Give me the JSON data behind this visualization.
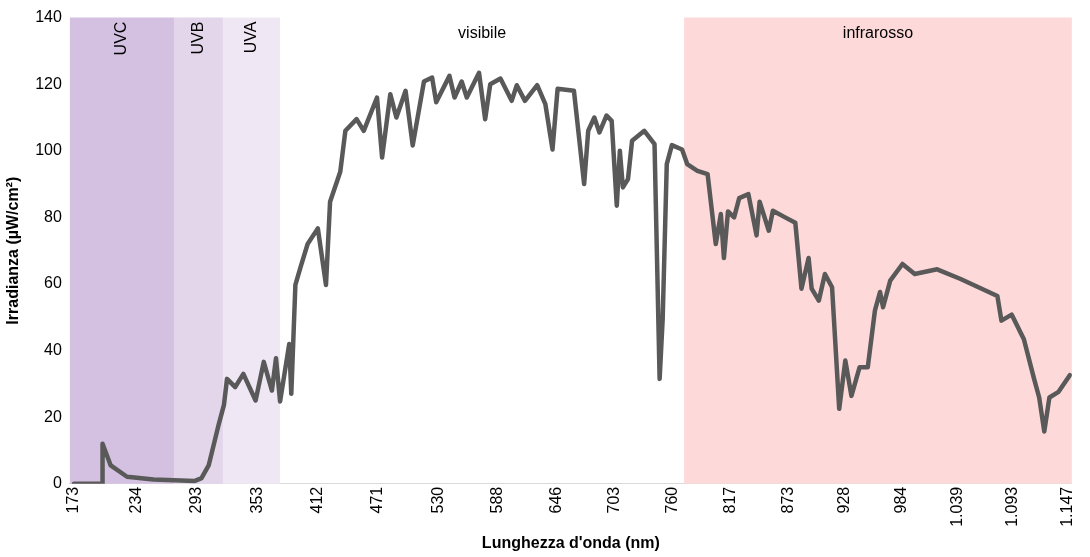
{
  "chart_data": {
    "type": "line",
    "xlabel": "Lunghezza d'onda (nm)",
    "ylabel": "Irradianza (µW/cm²)",
    "xlim": [
      169,
      1151
    ],
    "ylim": [
      0,
      140
    ],
    "xticks": [
      173,
      234,
      293,
      353,
      412,
      471,
      530,
      588,
      646,
      703,
      760,
      817,
      873,
      928,
      984,
      {
        "value": 1039,
        "label": "1.039"
      },
      {
        "value": 1093,
        "label": "1.093"
      },
      {
        "value": 1147,
        "label": "1.147"
      }
    ],
    "yticks": [
      0,
      20,
      40,
      60,
      80,
      100,
      120,
      140
    ],
    "annotations": [
      "visibile"
    ],
    "grid": false,
    "legend": false,
    "marker": "none",
    "line_style": "solid",
    "bands": [
      {
        "axis": "x",
        "from": 169,
        "to": 271,
        "label": "UVC",
        "color": "#d4c0e0"
      },
      {
        "axis": "x",
        "from": 271,
        "to": 319,
        "label": "UVB",
        "color": "#e3d6eb"
      },
      {
        "axis": "x",
        "from": 319,
        "to": 375,
        "label": "UVA",
        "color": "#efe8f4"
      },
      {
        "axis": "x",
        "from": 771,
        "to": 1151,
        "label": "infrarosso",
        "color": "#fdd9d9"
      }
    ],
    "series": [
      {
        "color": "#595959",
        "x": [
          173,
          201,
          201,
          209,
          225,
          251,
          291,
          298,
          305,
          315,
          320,
          323,
          331,
          339,
          351,
          359,
          367,
          371,
          375,
          384,
          386,
          390,
          395,
          402,
          412,
          420,
          424,
          434,
          439,
          450,
          457,
          470,
          475,
          483,
          489,
          498,
          505,
          516,
          524,
          528,
          541,
          546,
          553,
          558,
          570,
          576,
          581,
          591,
          602,
          607,
          615,
          627,
          635,
          642,
          647,
          663,
          673,
          677,
          683,
          688,
          695,
          700,
          705,
          708,
          711,
          716,
          720,
          732,
          742,
          747,
          750,
          754,
          759,
          769,
          774,
          784,
          794,
          802,
          807,
          810,
          814,
          820,
          825,
          834,
          842,
          845,
          854,
          858,
          870,
          880,
          886,
          893,
          896,
          903,
          909,
          916,
          923,
          929,
          935,
          943,
          951,
          958,
          963,
          966,
          973,
          985,
          997,
          1019,
          1042,
          1078,
          1082,
          1092,
          1104,
          1114,
          1119,
          1124,
          1129,
          1138,
          1149
        ],
        "values": [
          0,
          0,
          12,
          5.5,
          2.1,
          1.3,
          0.8,
          1.7,
          5.5,
          18,
          23.7,
          31.5,
          29,
          33,
          25,
          36.6,
          28,
          37.7,
          24.7,
          42,
          27,
          59.7,
          65,
          72,
          76.7,
          59.7,
          84.7,
          93.7,
          106,
          109.5,
          106,
          116,
          98,
          117,
          110,
          118,
          101.6,
          120.8,
          122,
          114.6,
          122.5,
          116,
          120.8,
          116,
          123.4,
          109.5,
          120,
          121.7,
          115,
          119.7,
          115,
          119.7,
          114,
          100.4,
          118.6,
          118,
          90,
          106,
          110,
          105.5,
          110.6,
          109,
          83.5,
          100,
          89,
          91.5,
          103,
          106,
          102,
          31.5,
          49.6,
          96,
          101.7,
          100.4,
          96,
          94,
          93,
          72,
          81,
          67.8,
          81.8,
          80,
          85.8,
          87,
          74.6,
          84.7,
          76,
          82,
          80,
          78.4,
          58.6,
          67.8,
          58.6,
          55,
          63,
          59,
          22.5,
          37,
          26.4,
          35,
          35,
          52,
          57.6,
          53,
          61,
          66,
          63,
          64.4,
          61.5,
          56.4,
          49,
          50.8,
          43.4,
          31.5,
          25.9,
          15.7,
          25.9,
          27.6,
          32.6
        ]
      }
    ]
  }
}
